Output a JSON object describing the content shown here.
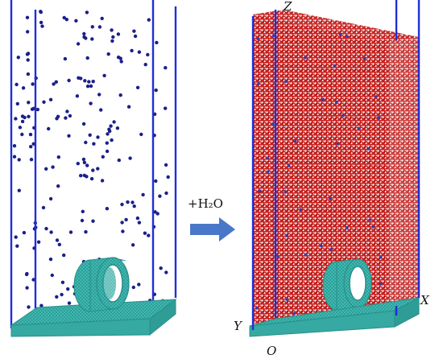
{
  "reaction": {
    "label": "+H₂O"
  },
  "axes": {
    "z": "Z",
    "x": "X",
    "y": "Y",
    "origin": "O"
  },
  "colors": {
    "box_edge": "#1f2fd6",
    "ion": "#1a1f8a",
    "graphene": "#3fbdb5",
    "graphene_dark": "#2a8f8a",
    "water_o": "#c8201e",
    "water_h": "#f2eeee",
    "arrow": "#4a78c8"
  }
}
